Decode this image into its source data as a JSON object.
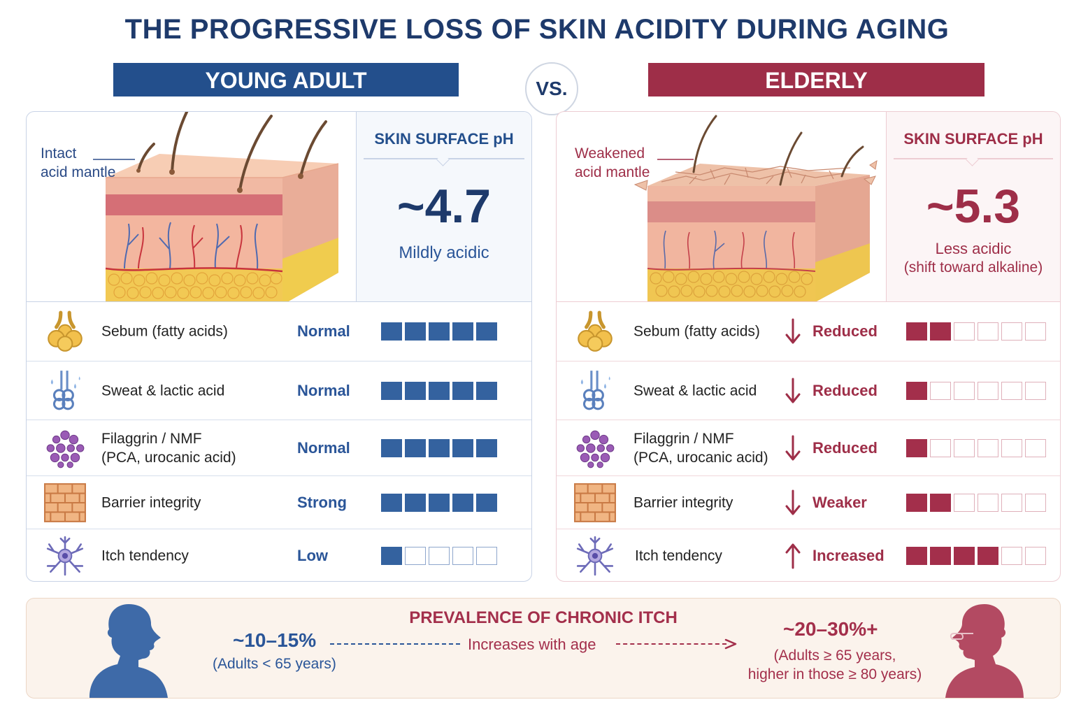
{
  "title": "THE PROGRESSIVE LOSS OF SKIN ACIDITY DURING AGING",
  "vs_label": "VS.",
  "colors": {
    "young_accent": "#234f8c",
    "elder_accent": "#9e2e48",
    "title": "#1e3a6b"
  },
  "young": {
    "header": "YOUNG ADULT",
    "mantle_label_line1": "Intact",
    "mantle_label_line2": "acid mantle",
    "ph_title": "SKIN SURFACE pH",
    "ph_value": "~4.7",
    "ph_desc": "Mildly acidic",
    "rows": [
      {
        "icon": "sebaceous-gland-icon",
        "label": "Sebum (fatty acids)",
        "status": "Normal",
        "level": 5,
        "total": 5
      },
      {
        "icon": "sweat-gland-icon",
        "label": "Sweat & lactic acid",
        "status": "Normal",
        "level": 5,
        "total": 5
      },
      {
        "icon": "molecules-icon",
        "label_line1": "Filaggrin / NMF",
        "label_line2": "(PCA, urocanic acid)",
        "status": "Normal",
        "level": 5,
        "total": 5
      },
      {
        "icon": "brick-wall-icon",
        "label": "Barrier integrity",
        "status": "Strong",
        "level": 5,
        "total": 5
      },
      {
        "icon": "nerve-cell-icon",
        "label": "Itch tendency",
        "status": "Low",
        "level": 1,
        "total": 5
      }
    ]
  },
  "elderly": {
    "header": "ELDERLY",
    "mantle_label_line1": "Weakened",
    "mantle_label_line2": "acid mantle",
    "ph_title": "SKIN SURFACE pH",
    "ph_value": "~5.3",
    "ph_desc_line1": "Less acidic",
    "ph_desc_line2": "(shift toward alkaline)",
    "rows": [
      {
        "icon": "sebaceous-gland-icon",
        "label": "Sebum (fatty acids)",
        "trend": "down",
        "status": "Reduced",
        "level": 2,
        "total": 6
      },
      {
        "icon": "sweat-gland-icon",
        "label": "Sweat & lactic acid",
        "trend": "down",
        "status": "Reduced",
        "level": 1,
        "total": 6
      },
      {
        "icon": "molecules-icon",
        "label_line1": "Filaggrin / NMF",
        "label_line2": "(PCA, urocanic acid)",
        "trend": "down",
        "status": "Reduced",
        "level": 1,
        "total": 6
      },
      {
        "icon": "brick-wall-icon",
        "label": "Barrier integrity",
        "trend": "down",
        "status": "Weaker",
        "level": 2,
        "total": 6
      },
      {
        "icon": "nerve-cell-icon",
        "label": "Itch tendency",
        "trend": "up",
        "status": "Increased",
        "level": 4,
        "total": 6
      }
    ]
  },
  "prevalence": {
    "title": "PREVALENCE OF CHRONIC ITCH",
    "young_value": "~10–15%",
    "young_note": "(Adults < 65 years)",
    "arrow_label": "Increases with age",
    "elder_value": "~20–30%+",
    "elder_note_line1": "(Adults ≥ 65 years,",
    "elder_note_line2": "higher in those ≥ 80 years)"
  }
}
